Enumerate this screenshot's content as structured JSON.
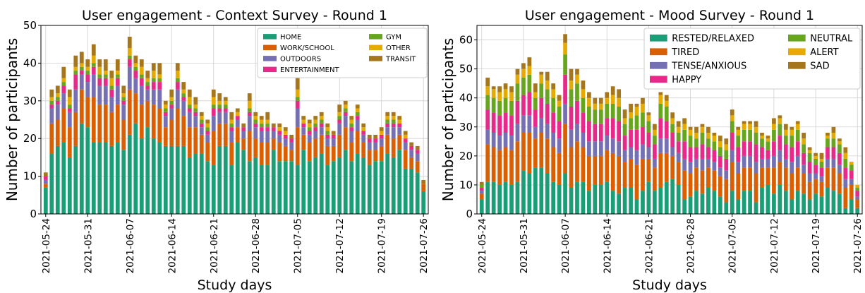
{
  "chart_data": [
    {
      "type": "bar",
      "stacked": true,
      "title": "User engagement - Context Survey - Round 1",
      "xlabel": "Study days",
      "ylabel": "Number of participants",
      "x": [
        "2021-05-24",
        "2021-05-25",
        "2021-05-26",
        "2021-05-27",
        "2021-05-28",
        "2021-05-29",
        "2021-05-30",
        "2021-05-31",
        "2021-06-01",
        "2021-06-02",
        "2021-06-03",
        "2021-06-04",
        "2021-06-05",
        "2021-06-06",
        "2021-06-07",
        "2021-06-08",
        "2021-06-09",
        "2021-06-10",
        "2021-06-11",
        "2021-06-12",
        "2021-06-13",
        "2021-06-14",
        "2021-06-15",
        "2021-06-16",
        "2021-06-17",
        "2021-06-18",
        "2021-06-19",
        "2021-06-20",
        "2021-06-21",
        "2021-06-22",
        "2021-06-23",
        "2021-06-24",
        "2021-06-25",
        "2021-06-26",
        "2021-06-27",
        "2021-06-28",
        "2021-06-29",
        "2021-06-30",
        "2021-07-01",
        "2021-07-02",
        "2021-07-03",
        "2021-07-04",
        "2021-07-05",
        "2021-07-06",
        "2021-07-07",
        "2021-07-08",
        "2021-07-09",
        "2021-07-10",
        "2021-07-11",
        "2021-07-12",
        "2021-07-13",
        "2021-07-14",
        "2021-07-15",
        "2021-07-16",
        "2021-07-17",
        "2021-07-18",
        "2021-07-19",
        "2021-07-20",
        "2021-07-21",
        "2021-07-22",
        "2021-07-23",
        "2021-07-24",
        "2021-07-25",
        "2021-07-26"
      ],
      "xticks": [
        "2021-05-24",
        "2021-05-31",
        "2021-06-07",
        "2021-06-14",
        "2021-06-21",
        "2021-06-28",
        "2021-07-05",
        "2021-07-12",
        "2021-07-19",
        "2021-07-26"
      ],
      "ylim": [
        0,
        50
      ],
      "yticks": [
        0,
        10,
        20,
        30,
        40,
        50
      ],
      "grid": true,
      "legend": "upper right",
      "series": [
        {
          "name": "HOME",
          "color": "#1b9e77",
          "values": [
            7,
            16,
            18,
            19,
            15,
            18,
            24,
            23,
            19,
            19,
            19,
            18,
            19,
            17,
            21,
            24,
            20,
            23,
            20,
            19,
            18,
            18,
            18,
            18,
            15,
            16,
            16,
            14,
            13,
            18,
            18,
            13,
            19,
            17,
            14,
            15,
            13,
            13,
            17,
            14,
            14,
            14,
            13,
            17,
            14,
            15,
            16,
            13,
            14,
            15,
            17,
            14,
            16,
            15,
            13,
            14,
            14,
            16,
            15,
            17,
            12,
            12,
            11,
            6
          ]
        },
        {
          "name": "WORK/SCHOOL",
          "color": "#d95f02",
          "values": [
            1,
            8,
            7,
            9,
            8,
            9,
            9,
            8,
            12,
            10,
            10,
            9,
            10,
            8,
            12,
            8,
            9,
            7,
            9,
            9,
            5,
            7,
            10,
            8,
            8,
            7,
            5,
            5,
            9,
            6,
            6,
            6,
            4,
            3,
            8,
            5,
            6,
            6,
            3,
            5,
            4,
            3,
            10,
            4,
            5,
            5,
            5,
            5,
            4,
            6,
            6,
            5,
            6,
            4,
            4,
            3,
            4,
            5,
            5,
            4,
            5,
            3,
            3,
            2
          ]
        },
        {
          "name": "OUTDOORS",
          "color": "#7570b3",
          "values": [
            1,
            4,
            4,
            4,
            4,
            6,
            4,
            4,
            6,
            5,
            5,
            4,
            5,
            4,
            6,
            4,
            5,
            3,
            4,
            5,
            3,
            3,
            5,
            4,
            4,
            3,
            2,
            2,
            4,
            3,
            3,
            3,
            2,
            2,
            4,
            3,
            3,
            3,
            2,
            2,
            2,
            2,
            5,
            2,
            2,
            2,
            2,
            2,
            2,
            3,
            3,
            3,
            3,
            2,
            2,
            2,
            2,
            2,
            3,
            2,
            2,
            2,
            2,
            0
          ]
        },
        {
          "name": "ENTERTAINMENT",
          "color": "#e7298a",
          "values": [
            1,
            1,
            1,
            2,
            1,
            4,
            1,
            2,
            2,
            2,
            2,
            2,
            2,
            1,
            2,
            2,
            2,
            1,
            2,
            2,
            1,
            1,
            2,
            1,
            1,
            1,
            1,
            1,
            2,
            1,
            1,
            1,
            1,
            1,
            1,
            1,
            1,
            1,
            1,
            1,
            1,
            1,
            2,
            1,
            1,
            1,
            1,
            1,
            1,
            1,
            1,
            1,
            1,
            1,
            1,
            1,
            1,
            1,
            1,
            1,
            1,
            1,
            1,
            0
          ]
        },
        {
          "name": "GYM",
          "color": "#66a61e",
          "values": [
            0,
            1,
            1,
            1,
            1,
            1,
            1,
            1,
            1,
            1,
            1,
            1,
            1,
            1,
            1,
            1,
            1,
            1,
            1,
            1,
            1,
            1,
            1,
            1,
            1,
            1,
            1,
            1,
            1,
            1,
            1,
            1,
            0,
            0,
            1,
            1,
            1,
            1,
            0,
            0,
            0,
            0,
            1,
            0,
            1,
            1,
            1,
            1,
            0,
            1,
            1,
            1,
            1,
            0,
            0,
            0,
            0,
            1,
            1,
            0,
            0,
            0,
            0,
            0
          ]
        },
        {
          "name": "OTHER",
          "color": "#e6ab02",
          "values": [
            0,
            1,
            1,
            1,
            2,
            1,
            1,
            1,
            2,
            2,
            1,
            2,
            1,
            1,
            2,
            1,
            2,
            1,
            2,
            1,
            1,
            1,
            2,
            1,
            2,
            1,
            1,
            1,
            2,
            1,
            1,
            1,
            1,
            0,
            2,
            1,
            1,
            1,
            0,
            1,
            1,
            0,
            2,
            1,
            1,
            1,
            1,
            1,
            0,
            1,
            1,
            1,
            1,
            1,
            0,
            0,
            1,
            1,
            1,
            1,
            1,
            0,
            0,
            0
          ]
        },
        {
          "name": "TRANSIT",
          "color": "#a6761d",
          "values": [
            1,
            2,
            2,
            3,
            2,
            3,
            3,
            2,
            3,
            2,
            3,
            2,
            3,
            2,
            3,
            2,
            2,
            2,
            2,
            3,
            1,
            2,
            2,
            2,
            2,
            2,
            1,
            1,
            2,
            2,
            1,
            2,
            1,
            1,
            2,
            1,
            1,
            2,
            1,
            1,
            1,
            1,
            3,
            1,
            1,
            1,
            1,
            1,
            1,
            2,
            1,
            1,
            1,
            1,
            1,
            1,
            1,
            1,
            1,
            1,
            1,
            1,
            1,
            1
          ]
        }
      ]
    },
    {
      "type": "bar",
      "stacked": true,
      "title": "User engagement - Mood Survey - Round 1",
      "xlabel": "Study days",
      "ylabel": "Number of participants",
      "x": [
        "2021-05-24",
        "2021-05-25",
        "2021-05-26",
        "2021-05-27",
        "2021-05-28",
        "2021-05-29",
        "2021-05-30",
        "2021-05-31",
        "2021-06-01",
        "2021-06-02",
        "2021-06-03",
        "2021-06-04",
        "2021-06-05",
        "2021-06-06",
        "2021-06-07",
        "2021-06-08",
        "2021-06-09",
        "2021-06-10",
        "2021-06-11",
        "2021-06-12",
        "2021-06-13",
        "2021-06-14",
        "2021-06-15",
        "2021-06-16",
        "2021-06-17",
        "2021-06-18",
        "2021-06-19",
        "2021-06-20",
        "2021-06-21",
        "2021-06-22",
        "2021-06-23",
        "2021-06-24",
        "2021-06-25",
        "2021-06-26",
        "2021-06-27",
        "2021-06-28",
        "2021-06-29",
        "2021-06-30",
        "2021-07-01",
        "2021-07-02",
        "2021-07-03",
        "2021-07-04",
        "2021-07-05",
        "2021-07-06",
        "2021-07-07",
        "2021-07-08",
        "2021-07-09",
        "2021-07-10",
        "2021-07-11",
        "2021-07-12",
        "2021-07-13",
        "2021-07-14",
        "2021-07-15",
        "2021-07-16",
        "2021-07-17",
        "2021-07-18",
        "2021-07-19",
        "2021-07-20",
        "2021-07-21",
        "2021-07-22",
        "2021-07-23",
        "2021-07-24",
        "2021-07-25",
        "2021-07-26"
      ],
      "xticks": [
        "2021-05-24",
        "2021-05-31",
        "2021-06-07",
        "2021-06-14",
        "2021-06-21",
        "2021-06-28",
        "2021-07-05",
        "2021-07-12",
        "2021-07-19",
        "2021-07-26"
      ],
      "ylim": [
        0,
        65
      ],
      "yticks": [
        0,
        10,
        20,
        30,
        40,
        50,
        60
      ],
      "grid": true,
      "legend": "upper right",
      "series": [
        {
          "name": "RESTED/RELAXED",
          "color": "#1b9e77",
          "values": [
            5,
            11,
            11,
            10,
            11,
            10,
            11,
            15,
            14,
            16,
            16,
            14,
            11,
            10,
            14,
            9,
            11,
            11,
            8,
            10,
            10,
            11,
            8,
            7,
            9,
            9,
            5,
            8,
            11,
            8,
            9,
            11,
            12,
            10,
            5,
            6,
            8,
            7,
            9,
            8,
            6,
            4,
            8,
            5,
            8,
            8,
            4,
            9,
            10,
            7,
            10,
            8,
            5,
            8,
            7,
            5,
            7,
            6,
            9,
            8,
            7,
            2,
            5,
            2
          ]
        },
        {
          "name": "TIRED",
          "color": "#d95f02",
          "values": [
            2,
            13,
            12,
            12,
            12,
            12,
            14,
            13,
            14,
            10,
            12,
            12,
            12,
            11,
            17,
            14,
            14,
            12,
            12,
            10,
            10,
            11,
            13,
            13,
            9,
            10,
            12,
            11,
            8,
            8,
            12,
            10,
            8,
            8,
            10,
            8,
            8,
            8,
            7,
            7,
            7,
            8,
            10,
            9,
            8,
            8,
            10,
            7,
            6,
            9,
            8,
            8,
            9,
            8,
            7,
            6,
            5,
            5,
            7,
            8,
            7,
            7,
            5,
            3
          ]
        },
        {
          "name": "TENSE/ANXIOUS",
          "color": "#7570b3",
          "values": [
            1,
            5,
            5,
            5,
            5,
            5,
            6,
            6,
            6,
            4,
            5,
            5,
            5,
            5,
            7,
            6,
            6,
            5,
            5,
            5,
            5,
            5,
            5,
            5,
            4,
            4,
            5,
            5,
            4,
            3,
            5,
            5,
            3,
            3,
            4,
            4,
            3,
            4,
            3,
            3,
            3,
            3,
            4,
            4,
            4,
            4,
            4,
            3,
            3,
            4,
            4,
            3,
            4,
            4,
            3,
            3,
            2,
            2,
            3,
            3,
            3,
            3,
            2,
            1
          ]
        },
        {
          "name": "HAPPY",
          "color": "#e7298a",
          "values": [
            1,
            7,
            7,
            7,
            7,
            7,
            8,
            7,
            8,
            6,
            7,
            7,
            7,
            6,
            10,
            8,
            8,
            7,
            7,
            6,
            6,
            6,
            7,
            7,
            5,
            6,
            7,
            6,
            5,
            5,
            7,
            6,
            5,
            4,
            6,
            5,
            4,
            5,
            4,
            4,
            4,
            4,
            6,
            5,
            5,
            5,
            6,
            4,
            3,
            5,
            5,
            5,
            5,
            5,
            4,
            4,
            3,
            3,
            4,
            4,
            4,
            4,
            3,
            2
          ]
        },
        {
          "name": "NEUTRAL",
          "color": "#66a61e",
          "values": [
            1,
            5,
            5,
            5,
            5,
            5,
            6,
            6,
            6,
            4,
            5,
            5,
            5,
            5,
            7,
            6,
            6,
            5,
            5,
            5,
            5,
            5,
            5,
            5,
            4,
            4,
            5,
            5,
            4,
            3,
            5,
            5,
            3,
            3,
            4,
            4,
            3,
            4,
            3,
            3,
            3,
            3,
            4,
            4,
            4,
            4,
            4,
            3,
            3,
            4,
            4,
            3,
            4,
            4,
            3,
            3,
            2,
            2,
            3,
            3,
            3,
            3,
            2,
            1
          ]
        },
        {
          "name": "ALERT",
          "color": "#e6ab02",
          "values": [
            0,
            3,
            3,
            3,
            3,
            3,
            3,
            3,
            3,
            2,
            3,
            3,
            3,
            2,
            4,
            3,
            3,
            3,
            3,
            2,
            2,
            2,
            3,
            3,
            2,
            2,
            3,
            3,
            2,
            2,
            3,
            2,
            2,
            2,
            2,
            2,
            2,
            2,
            2,
            2,
            2,
            2,
            2,
            2,
            2,
            2,
            2,
            1,
            1,
            2,
            2,
            2,
            2,
            2,
            2,
            1,
            1,
            1,
            1,
            2,
            1,
            2,
            1,
            1
          ]
        },
        {
          "name": "SAD",
          "color": "#a6761d",
          "values": [
            1,
            3,
            1,
            2,
            2,
            2,
            2,
            2,
            3,
            3,
            1,
            3,
            2,
            2,
            3,
            4,
            2,
            3,
            2,
            2,
            2,
            2,
            3,
            3,
            3,
            3,
            1,
            2,
            1,
            2,
            1,
            2,
            2,
            2,
            2,
            1,
            2,
            1,
            2,
            1,
            2,
            2,
            2,
            1,
            1,
            1,
            2,
            1,
            1,
            2,
            1,
            2,
            1,
            1,
            2,
            1,
            1,
            2,
            1,
            2,
            1,
            2,
            0,
            0
          ]
        }
      ]
    }
  ]
}
